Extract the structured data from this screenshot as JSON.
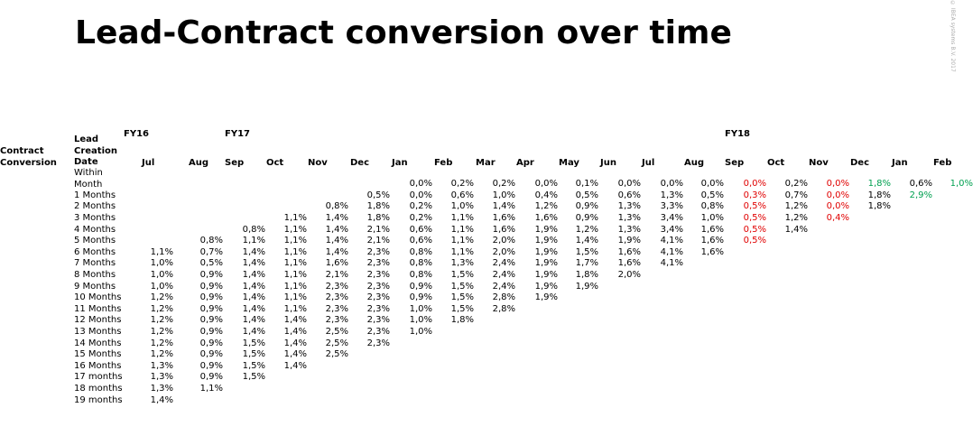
{
  "header": {
    "title": "Lead-Contract conversion over time",
    "copyright": "© IBEA systems B.V. 2017"
  },
  "table": {
    "corner_label": "Contract Conversion",
    "row_header_label": "Lead Creation Date",
    "fiscal_years": [
      "FY16",
      "FY17",
      "FY18"
    ],
    "columns": [
      "Jul",
      "Aug",
      "Sep",
      "Oct",
      "Nov",
      "Dec",
      "Jan",
      "Feb",
      "Mar",
      "Apr",
      "May",
      "Jun",
      "Jul",
      "Aug",
      "Sep",
      "Oct",
      "Nov",
      "Dec",
      "Jan",
      "Feb"
    ],
    "rows": [
      {
        "label": "Within Month",
        "cells": [
          null,
          null,
          null,
          null,
          null,
          null,
          "0,0%",
          "0,2%",
          "0,2%",
          "0,0%",
          "0,1%",
          "0,0%",
          "0,0%",
          "0,0%",
          {
            "text": "0,0%",
            "color": "#e00000"
          },
          "0,2%",
          {
            "text": "0,0%",
            "color": "#e00000"
          },
          {
            "text": "1,8%",
            "color": "#00a050"
          },
          "0,6%",
          {
            "text": "1,0%",
            "color": "#00a050"
          }
        ]
      },
      {
        "label": "1 Months",
        "cells": [
          null,
          null,
          null,
          null,
          null,
          "0,5%",
          "0,0%",
          "0,6%",
          "1,0%",
          "0,4%",
          "0,5%",
          "0,6%",
          "1,3%",
          "0,5%",
          {
            "text": "0,3%",
            "color": "#e00000"
          },
          "0,7%",
          {
            "text": "0,0%",
            "color": "#e00000"
          },
          "1,8%",
          {
            "text": "2,9%",
            "color": "#00a050"
          }
        ]
      },
      {
        "label": "2 Months",
        "cells": [
          null,
          null,
          null,
          null,
          "0,8%",
          "1,8%",
          "0,2%",
          "1,0%",
          "1,4%",
          "1,2%",
          "0,9%",
          "1,3%",
          "3,3%",
          "0,8%",
          {
            "text": "0,5%",
            "color": "#e00000"
          },
          "1,2%",
          {
            "text": "0,0%",
            "color": "#e00000"
          },
          "1,8%"
        ]
      },
      {
        "label": "3 Months",
        "cells": [
          null,
          null,
          null,
          "1,1%",
          "1,4%",
          "1,8%",
          "0,2%",
          "1,1%",
          "1,6%",
          "1,6%",
          "0,9%",
          "1,3%",
          "3,4%",
          "1,0%",
          {
            "text": "0,5%",
            "color": "#e00000"
          },
          "1,2%",
          {
            "text": "0,4%",
            "color": "#e00000"
          }
        ]
      },
      {
        "label": "4 Months",
        "cells": [
          null,
          null,
          "0,8%",
          "1,1%",
          "1,4%",
          "2,1%",
          "0,6%",
          "1,1%",
          "1,6%",
          "1,9%",
          "1,2%",
          "1,3%",
          "3,4%",
          "1,6%",
          {
            "text": "0,5%",
            "color": "#e00000"
          },
          "1,4%"
        ]
      },
      {
        "label": "5 Months",
        "cells": [
          null,
          "0,8%",
          "1,1%",
          "1,1%",
          "1,4%",
          "2,1%",
          "0,6%",
          "1,1%",
          "2,0%",
          "1,9%",
          "1,4%",
          "1,9%",
          "4,1%",
          "1,6%",
          {
            "text": "0,5%",
            "color": "#e00000"
          }
        ]
      },
      {
        "label": "6 Months",
        "cells": [
          "1,1%",
          "0,7%",
          "1,4%",
          "1,1%",
          "1,4%",
          "2,3%",
          "0,8%",
          "1,1%",
          "2,0%",
          "1,9%",
          "1,5%",
          "1,6%",
          "4,1%",
          "1,6%"
        ]
      },
      {
        "label": "7 Months",
        "cells": [
          "1,0%",
          "0,5%",
          "1,4%",
          "1,1%",
          "1,6%",
          "2,3%",
          "0,8%",
          "1,3%",
          "2,4%",
          "1,9%",
          "1,7%",
          "1,6%",
          "4,1%"
        ]
      },
      {
        "label": "8 Months",
        "cells": [
          "1,0%",
          "0,9%",
          "1,4%",
          "1,1%",
          "2,1%",
          "2,3%",
          "0,8%",
          "1,5%",
          "2,4%",
          "1,9%",
          "1,8%",
          "2,0%"
        ]
      },
      {
        "label": "9 Months",
        "cells": [
          "1,0%",
          "0,9%",
          "1,4%",
          "1,1%",
          "2,3%",
          "2,3%",
          "0,9%",
          "1,5%",
          "2,4%",
          "1,9%",
          "1,9%"
        ]
      },
      {
        "label": "10 Months",
        "cells": [
          "1,2%",
          "0,9%",
          "1,4%",
          "1,1%",
          "2,3%",
          "2,3%",
          "0,9%",
          "1,5%",
          "2,8%",
          "1,9%"
        ]
      },
      {
        "label": "11 Months",
        "cells": [
          "1,2%",
          "0,9%",
          "1,4%",
          "1,1%",
          "2,3%",
          "2,3%",
          "1,0%",
          "1,5%",
          "2,8%"
        ]
      },
      {
        "label": "12 Months",
        "cells": [
          "1,2%",
          "0,9%",
          "1,4%",
          "1,4%",
          "2,3%",
          "2,3%",
          "1,0%",
          "1,8%"
        ]
      },
      {
        "label": "13 Months",
        "cells": [
          "1,2%",
          "0,9%",
          "1,4%",
          "1,4%",
          "2,5%",
          "2,3%",
          "1,0%"
        ]
      },
      {
        "label": "14 Months",
        "cells": [
          "1,2%",
          "0,9%",
          "1,5%",
          "1,4%",
          "2,5%",
          "2,3%"
        ]
      },
      {
        "label": "15 Months",
        "cells": [
          "1,2%",
          "0,9%",
          "1,5%",
          "1,4%",
          "2,5%"
        ]
      },
      {
        "label": "16 Months",
        "cells": [
          "1,3%",
          "0,9%",
          "1,5%",
          "1,4%"
        ]
      },
      {
        "label": "17 months",
        "cells": [
          "1,3%",
          "0,9%",
          "1,5%"
        ]
      },
      {
        "label": "18 months",
        "cells": [
          "1,3%",
          "1,1%"
        ]
      },
      {
        "label": "19 months",
        "cells": [
          "1,4%"
        ]
      }
    ]
  }
}
